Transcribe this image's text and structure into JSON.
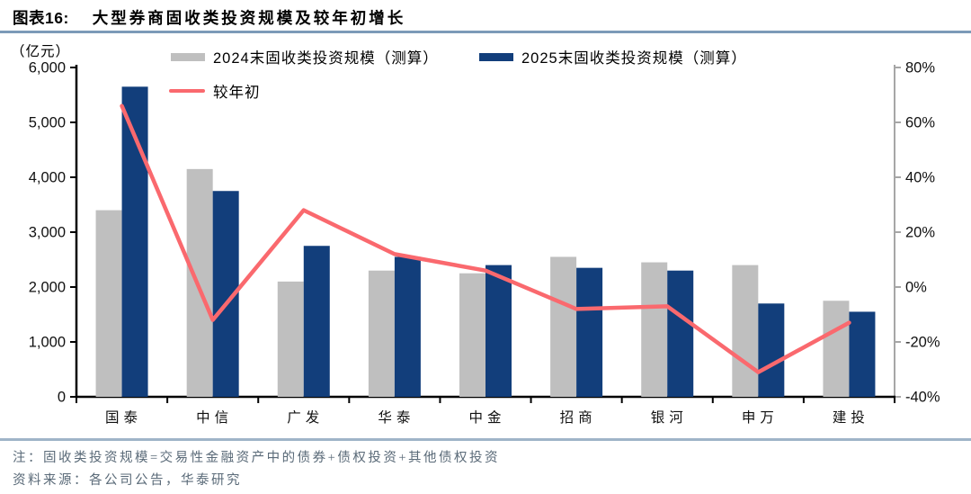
{
  "figure": {
    "label": "图表16:",
    "title": "大型券商固收类投资规模及较年初增长"
  },
  "chart_data": {
    "type": "bar",
    "subtype": "grouped-bars-with-line-overlay",
    "unit_label": "（亿元）",
    "categories": [
      "国泰",
      "中信",
      "广发",
      "华泰",
      "中金",
      "招商",
      "银河",
      "申万",
      "建投"
    ],
    "series": [
      {
        "name": "2024末固收类投资规模（测算）",
        "type": "bar",
        "axis": "left",
        "color": "#bfbfbf",
        "values": [
          3400,
          4150,
          2100,
          2300,
          2250,
          2550,
          2450,
          2400,
          1750
        ]
      },
      {
        "name": "2025末固收类投资规模（测算）",
        "type": "bar",
        "axis": "left",
        "color": "#123e7b",
        "values": [
          5650,
          3750,
          2750,
          2550,
          2400,
          2350,
          2300,
          1700,
          1550
        ]
      },
      {
        "name": "较年初",
        "type": "line",
        "axis": "right",
        "color": "#fa696e",
        "values": [
          66,
          -12,
          28,
          12,
          6,
          -8,
          -7,
          -31,
          -13
        ]
      }
    ],
    "left_axis": {
      "min": 0,
      "max": 6000,
      "step": 1000,
      "tick_labels": [
        "0",
        "1,000",
        "2,000",
        "3,000",
        "4,000",
        "5,000",
        "6,000"
      ]
    },
    "right_axis": {
      "min": -40,
      "max": 80,
      "step": 20,
      "tick_labels": [
        "-40%",
        "-20%",
        "0%",
        "20%",
        "40%",
        "60%",
        "80%"
      ]
    },
    "legend_position": "top",
    "grid": false
  },
  "notes": {
    "definition": "注：固收类投资规模=交易性金融资产中的债券+债权投资+其他债权投资",
    "source": "资料来源：各公司公告，华泰研究"
  },
  "colors": {
    "bar_2024": "#bfbfbf",
    "bar_2025": "#123e7b",
    "growth_line": "#fa696e",
    "title_rule": "#7c9ab8",
    "footer_rule": "#9fb4c8",
    "note_text": "#5a6a78",
    "axis": "#000000",
    "right_axis": "#a6a6a6",
    "tick_label": "#111111"
  }
}
